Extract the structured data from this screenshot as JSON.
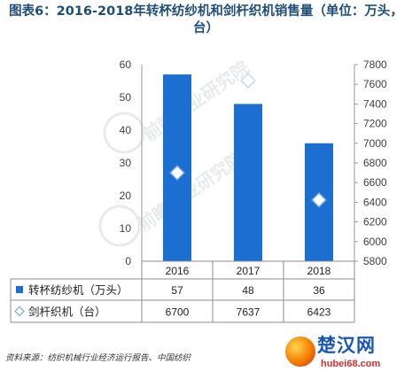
{
  "title": "图表6：2016-2018年转杯纺纱机和剑杆织机销售量（单位：万头，台）",
  "chart_data": {
    "type": "bar",
    "title": "图表6：2016-2018年转杯纺纱机和剑杆织机销售量（单位：万头，台）",
    "categories": [
      "2016",
      "2017",
      "2018"
    ],
    "series": [
      {
        "name": "转杯纺纱机（万头）",
        "type": "bar",
        "axis": "left",
        "color": "#1c6fd0",
        "values": [
          57,
          48,
          36
        ]
      },
      {
        "name": "剑杆织机（台）",
        "type": "scatter",
        "axis": "right",
        "marker": "diamond",
        "values": [
          6700,
          7637,
          6423
        ]
      }
    ],
    "y_left": {
      "min": 0,
      "max": 60,
      "ticks": [
        0,
        10,
        20,
        30,
        40,
        50,
        60
      ]
    },
    "y_right": {
      "min": 5800,
      "max": 7800,
      "ticks": [
        5800,
        6000,
        6200,
        6400,
        6600,
        6800,
        7000,
        7200,
        7400,
        7600,
        7800
      ]
    },
    "data_table": true
  },
  "table": {
    "rows": [
      {
        "label": "转杯纺纱机（万头）",
        "values": [
          "57",
          "48",
          "36"
        ]
      },
      {
        "label": "剑杆织机（台）",
        "values": [
          "6700",
          "7637",
          "6423"
        ]
      }
    ]
  },
  "source": "资料来源：纺织机械行业经济运行报告、中国纺织",
  "logo": {
    "name": "楚汉网",
    "url": "hubei68.com"
  }
}
